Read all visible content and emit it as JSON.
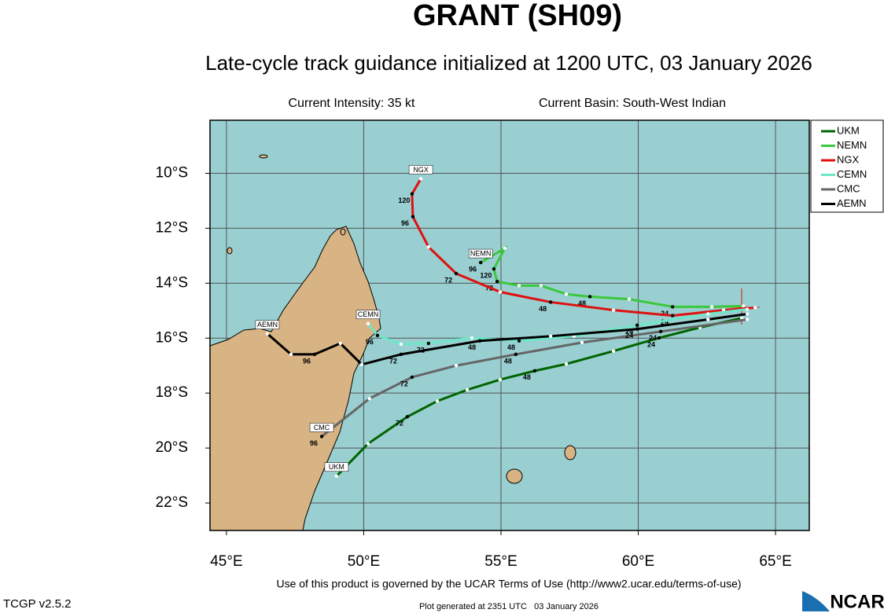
{
  "chart_data": {
    "type": "track",
    "title": "GRANT (SH09)",
    "subtitle": "Late-cycle track guidance initialized at 1200 UTC, 03 January 2026",
    "annotations": [
      "Current Intensity: 35 kt",
      "Current Basin: South-West Indian"
    ],
    "xlim": [
      44.4,
      66.23
    ],
    "ylim": [
      -23.0,
      -8.07
    ],
    "xticks": [
      {
        "value": 45,
        "label": "45°E"
      },
      {
        "value": 50,
        "label": "50°E"
      },
      {
        "value": 55,
        "label": "55°E"
      },
      {
        "value": 60,
        "label": "60°E"
      },
      {
        "value": 65,
        "label": "65°E"
      }
    ],
    "yticks": [
      {
        "value": -10,
        "label": "10°S"
      },
      {
        "value": -12,
        "label": "12°S"
      },
      {
        "value": -14,
        "label": "14°S"
      },
      {
        "value": -16,
        "label": "16°S"
      },
      {
        "value": -18,
        "label": "18°S"
      },
      {
        "value": -20,
        "label": "20°S"
      },
      {
        "value": -22,
        "label": "22°S"
      }
    ],
    "grid": true,
    "series": [
      {
        "name": "UKM",
        "color": "#006400",
        "x": [
          63.77,
          62.25,
          60.76,
          59.1,
          57.38,
          56.23,
          54.97,
          53.77,
          52.68,
          51.59,
          50.16,
          49.01
        ],
        "values": [
          -15.27,
          -15.61,
          -15.99,
          -16.47,
          -16.94,
          -17.19,
          -17.51,
          -17.88,
          -18.29,
          -18.86,
          -19.84,
          -21.02
        ],
        "labels": [
          null,
          null,
          "24",
          null,
          null,
          "48",
          null,
          null,
          null,
          "72",
          null,
          null
        ]
      },
      {
        "name": "NEMN",
        "color": "#3cc83c",
        "x": [
          63.83,
          62.68,
          61.25,
          59.67,
          58.24,
          57.38,
          56.46,
          55.66,
          54.86,
          54.74,
          55.14,
          54.26
        ],
        "values": [
          -14.83,
          -14.86,
          -14.86,
          -14.58,
          -14.49,
          -14.4,
          -14.09,
          -14.09,
          -13.94,
          -13.48,
          -12.73,
          -13.25
        ],
        "labels": [
          null,
          null,
          "24",
          null,
          "48",
          null,
          null,
          null,
          "72",
          "120",
          null,
          "96"
        ]
      },
      {
        "name": "NGX",
        "color": "#e01010",
        "x": [
          64.26,
          63.11,
          61.25,
          59.1,
          56.81,
          54.97,
          53.37,
          52.36,
          51.79,
          51.76,
          52.08
        ],
        "values": [
          -14.89,
          -14.98,
          -15.18,
          -14.98,
          -14.69,
          -14.32,
          -13.65,
          -12.68,
          -11.58,
          -10.75,
          -10.2
        ],
        "labels": [
          null,
          null,
          "24",
          null,
          "48",
          null,
          "72",
          null,
          "96",
          "120",
          null
        ]
      },
      {
        "name": "CEMN",
        "color": "#6ee6c8",
        "x": [
          63.97,
          62.54,
          59.96,
          57.66,
          55.66,
          53.94,
          52.36,
          51.36,
          50.5,
          50.16
        ],
        "values": [
          -14.95,
          -15.12,
          -15.53,
          -15.93,
          -16.1,
          -15.99,
          -16.19,
          -16.22,
          -15.9,
          -15.47
        ],
        "labels": [
          null,
          null,
          "24",
          null,
          "48",
          null,
          "72",
          null,
          "96",
          null
        ]
      },
      {
        "name": "CMC",
        "color": "#666666",
        "x": [
          63.97,
          60.82,
          57.95,
          55.54,
          53.37,
          51.76,
          50.21,
          48.47
        ],
        "values": [
          -15.32,
          -15.76,
          -16.16,
          -16.59,
          -17.0,
          -17.42,
          -18.2,
          -19.58
        ],
        "labels": [
          null,
          "24",
          null,
          "48",
          null,
          "72",
          null,
          "96"
        ]
      },
      {
        "name": "AEMN",
        "color": "#000000",
        "x": [
          63.97,
          62.54,
          59.96,
          56.81,
          54.23,
          51.36,
          49.93,
          49.15,
          48.21,
          47.35,
          46.49
        ],
        "values": [
          -15.12,
          -15.32,
          -15.67,
          -15.93,
          -16.1,
          -16.59,
          -16.96,
          -16.19,
          -16.59,
          -16.59,
          -15.84
        ],
        "labels": [
          null,
          null,
          "24",
          null,
          "48",
          "72",
          null,
          null,
          "96",
          null,
          null
        ]
      }
    ]
  },
  "footer": {
    "terms": "Use of this product is governed by the UCAR Terms of Use (http://www2.ucar.edu/terms-of-use)",
    "version": "TCGP v2.5.2",
    "generated": "Plot generated at 2351 UTC   03 January 2026",
    "logo": "NCAR"
  }
}
